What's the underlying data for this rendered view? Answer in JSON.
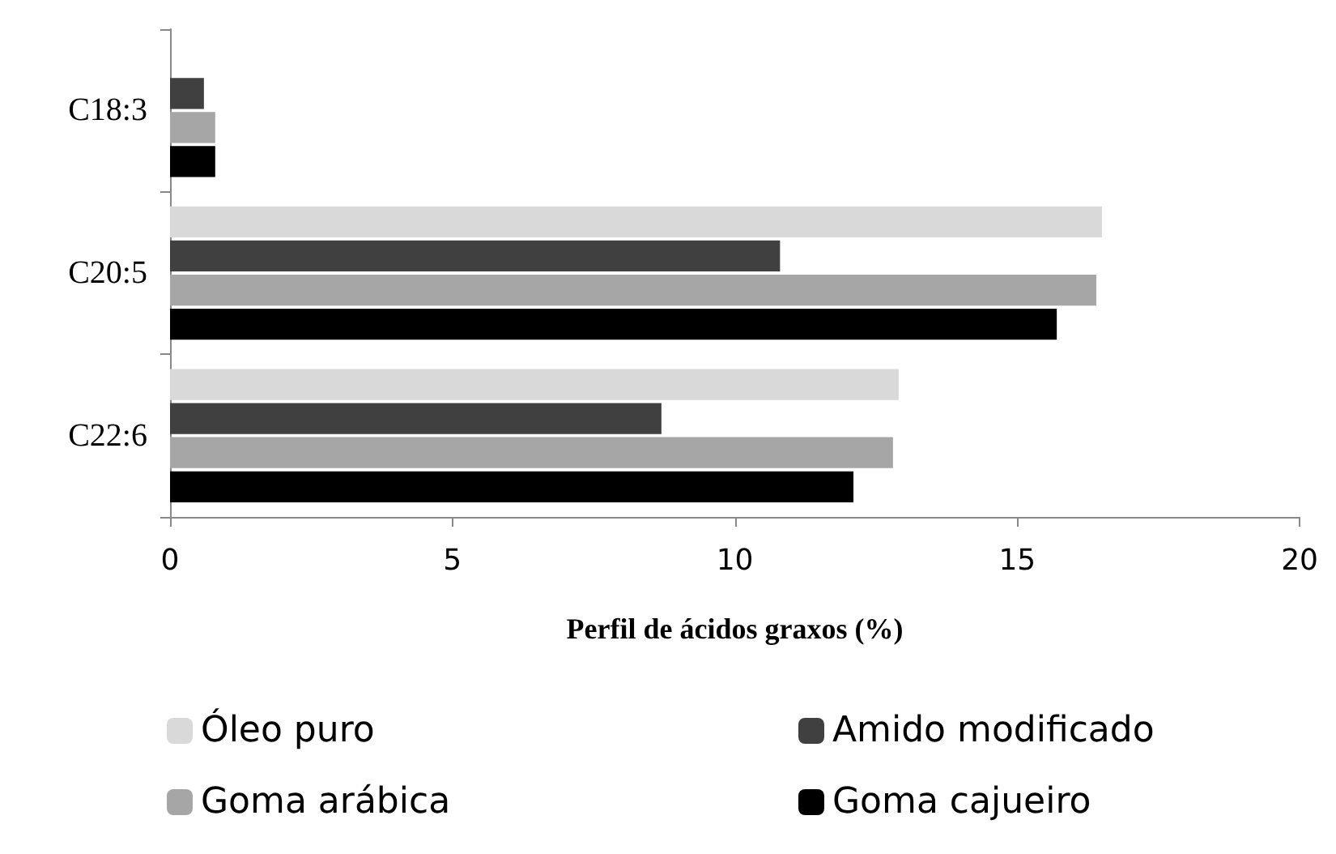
{
  "chart_data": {
    "type": "bar",
    "orientation": "horizontal",
    "xlabel": "Perfil de ácidos graxos (%)",
    "categories": [
      "C18:3",
      "C20:5",
      "C22:6"
    ],
    "series": [
      {
        "name": "Óleo puro",
        "color": "#d9d9d9",
        "values": [
          null,
          16.5,
          12.9
        ]
      },
      {
        "name": "Amido modificado",
        "color": "#404040",
        "values": [
          0.6,
          10.8,
          8.7
        ]
      },
      {
        "name": "Goma arábica",
        "color": "#a6a6a6",
        "values": [
          0.8,
          16.4,
          12.8
        ]
      },
      {
        "name": "Goma cajueiro",
        "color": "#000000",
        "values": [
          0.8,
          15.7,
          12.1
        ]
      }
    ],
    "xlim": [
      0,
      20
    ],
    "xticks": [
      0,
      5,
      10,
      15,
      20
    ],
    "grid": false,
    "legend": "bottom"
  }
}
